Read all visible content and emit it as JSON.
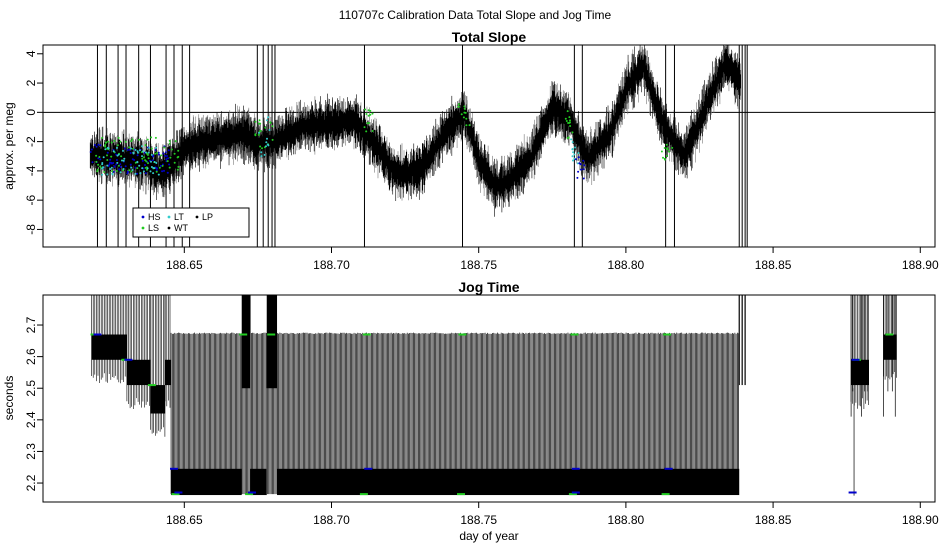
{
  "figure_title": "110707c   Calibration Data Total Slope and Jog Time",
  "colors": {
    "HS": "#0000cc",
    "LS": "#22cc22",
    "LT": "#33cccc",
    "WT": "#000000",
    "LP": "#000000",
    "trace": "#000000",
    "trace_light": "#777777"
  },
  "chart_data": [
    {
      "type": "scatter",
      "title": "Total Slope",
      "xlabel": "",
      "ylabel": "approx. per meg",
      "xlim": [
        188.602,
        188.905
      ],
      "ylim": [
        -9.2,
        4.6
      ],
      "x_ticks": [
        188.65,
        188.7,
        188.75,
        188.8,
        188.85,
        188.9
      ],
      "x_tick_labels": [
        "188.65",
        "188.70",
        "188.75",
        "188.80",
        "188.85",
        "188.90"
      ],
      "y_ticks": [
        -8,
        -6,
        -4,
        -2,
        0,
        2,
        4
      ],
      "y_tick_labels": [
        "-8",
        "-6",
        "-4",
        "-2",
        "0",
        "2",
        "4"
      ],
      "hline": 0,
      "legend": {
        "placement": "bottom-left",
        "entries": [
          {
            "name": "HS",
            "color": "#0000cc"
          },
          {
            "name": "LT",
            "color": "#33cccc"
          },
          {
            "name": "LP",
            "color": "#000000"
          },
          {
            "name": "LS",
            "color": "#22cc22"
          },
          {
            "name": "WT",
            "color": "#000000"
          }
        ]
      },
      "trend_x": [
        188.618,
        188.625,
        188.632,
        188.638,
        188.642,
        188.646,
        188.65,
        188.66,
        188.67,
        188.675,
        188.68,
        188.69,
        188.7,
        188.708,
        188.715,
        188.722,
        188.73,
        188.738,
        188.745,
        188.75,
        188.755,
        188.76,
        188.768,
        188.775,
        188.781,
        188.787,
        188.795,
        188.8,
        188.806,
        188.813,
        188.82,
        188.828,
        188.834,
        188.839
      ],
      "trend_y": [
        -2.8,
        -3.1,
        -3.2,
        -3.6,
        -4.2,
        -3.5,
        -2.4,
        -1.8,
        -1.5,
        -2.2,
        -2.0,
        -1.0,
        -0.8,
        -0.6,
        -2.2,
        -4.2,
        -4.0,
        -1.6,
        0.0,
        -3.2,
        -5.0,
        -4.8,
        -3.0,
        0.3,
        -0.5,
        -3.2,
        -1.3,
        1.6,
        3.2,
        -1.0,
        -3.0,
        0.8,
        3.5,
        2.0
      ],
      "spikes_x": [
        188.6205,
        188.6235,
        188.6275,
        188.6302,
        188.6345,
        188.6385,
        188.6438,
        188.6465,
        188.6493,
        188.6518,
        188.6748,
        188.6768,
        188.6785,
        188.6798,
        188.6808,
        188.7112,
        188.7445,
        188.7825,
        188.7852,
        188.8135,
        188.8165,
        188.8385,
        188.8395,
        188.8405,
        188.8412
      ],
      "group_markers": [
        {
          "code": "HS",
          "x0": 188.618,
          "x1": 188.645,
          "y_center": -3.2,
          "spread": 1.0
        },
        {
          "code": "LS",
          "x0": 188.62,
          "x1": 188.648,
          "y_center": -2.9,
          "spread": 1.2
        },
        {
          "code": "LT",
          "x0": 188.622,
          "x1": 188.642,
          "y_center": -3.3,
          "spread": 1.0
        },
        {
          "code": "LS",
          "x0": 188.674,
          "x1": 188.68,
          "y_center": -1.7,
          "spread": 1.2
        },
        {
          "code": "LT",
          "x0": 188.675,
          "x1": 188.679,
          "y_center": -1.6,
          "spread": 1.6
        },
        {
          "code": "LS",
          "x0": 188.71,
          "x1": 188.714,
          "y_center": -0.6,
          "spread": 0.8
        },
        {
          "code": "LS",
          "x0": 188.743,
          "x1": 188.747,
          "y_center": 0.0,
          "spread": 0.9
        },
        {
          "code": "LS",
          "x0": 188.779,
          "x1": 188.782,
          "y_center": -0.8,
          "spread": 1.0
        },
        {
          "code": "LT",
          "x0": 188.781,
          "x1": 188.784,
          "y_center": -2.6,
          "spread": 1.0
        },
        {
          "code": "HS",
          "x0": 188.783,
          "x1": 188.786,
          "y_center": -3.8,
          "spread": 0.8
        },
        {
          "code": "LS",
          "x0": 188.812,
          "x1": 188.816,
          "y_center": -2.8,
          "spread": 0.6
        }
      ]
    },
    {
      "type": "scatter",
      "title": "Jog Time",
      "xlabel": "day of year",
      "ylabel": "seconds",
      "xlim": [
        188.602,
        188.905
      ],
      "ylim": [
        2.14,
        2.795
      ],
      "x_ticks": [
        188.65,
        188.7,
        188.75,
        188.8,
        188.85,
        188.9
      ],
      "x_tick_labels": [
        "188.65",
        "188.70",
        "188.75",
        "188.80",
        "188.85",
        "188.90"
      ],
      "y_ticks": [
        2.2,
        2.3,
        2.4,
        2.5,
        2.6,
        2.7
      ],
      "y_tick_labels": [
        "2.2",
        "2.3",
        "2.4",
        "2.5",
        "2.6",
        "2.7"
      ],
      "dense_band": {
        "x_ranges": [
          [
            188.6455,
            188.6695
          ],
          [
            188.6725,
            188.678
          ],
          [
            188.6815,
            188.8385
          ]
        ],
        "y0": 2.162,
        "y1": 2.245
      },
      "oscillation": {
        "x0": 188.6455,
        "x1": 188.8385,
        "y_low": 2.165,
        "y_high": 2.676
      },
      "early_blocks": [
        {
          "x0": 188.6185,
          "x1": 188.6305,
          "y0": 2.59,
          "y1": 2.67
        },
        {
          "x0": 188.6305,
          "x1": 188.6385,
          "y0": 2.51,
          "y1": 2.59
        },
        {
          "x0": 188.6385,
          "x1": 188.6435,
          "y0": 2.42,
          "y1": 2.51
        },
        {
          "x0": 188.6435,
          "x1": 188.6455,
          "y0": 2.51,
          "y1": 2.59
        }
      ],
      "late_blocks": [
        {
          "x0": 188.8765,
          "x1": 188.8825,
          "y0": 2.51,
          "y1": 2.59
        },
        {
          "x0": 188.8875,
          "x1": 188.892,
          "y0": 2.59,
          "y1": 2.67
        }
      ],
      "gap_segments": [
        {
          "x0": 188.6695,
          "x1": 188.6725
        },
        {
          "x0": 188.678,
          "x1": 188.6815
        }
      ],
      "colored_markers": [
        {
          "code": "LS",
          "x": [
            188.6195,
            188.63,
            188.639,
            188.67,
            188.6795,
            188.712,
            188.7445,
            188.7825,
            188.814,
            188.8785,
            188.8895
          ],
          "y": [
            2.67,
            2.59,
            2.51,
            2.67,
            2.67,
            2.67,
            2.67,
            2.67,
            2.67,
            2.59,
            2.67
          ]
        },
        {
          "code": "HS",
          "x": [
            188.6205,
            188.631,
            188.6465,
            188.7125,
            188.783,
            188.8145,
            188.878
          ],
          "y": [
            2.67,
            2.59,
            2.245,
            2.245,
            2.245,
            2.245,
            2.59
          ]
        },
        {
          "code": "LS",
          "x": [
            188.647,
            188.672,
            188.711,
            188.744,
            188.782,
            188.8135
          ],
          "y": [
            2.165,
            2.165,
            2.165,
            2.165,
            2.165,
            2.165
          ]
        },
        {
          "code": "HS",
          "x": [
            188.648,
            188.673,
            188.783,
            188.877
          ],
          "y": [
            2.17,
            2.17,
            2.17,
            2.17
          ]
        }
      ]
    }
  ]
}
